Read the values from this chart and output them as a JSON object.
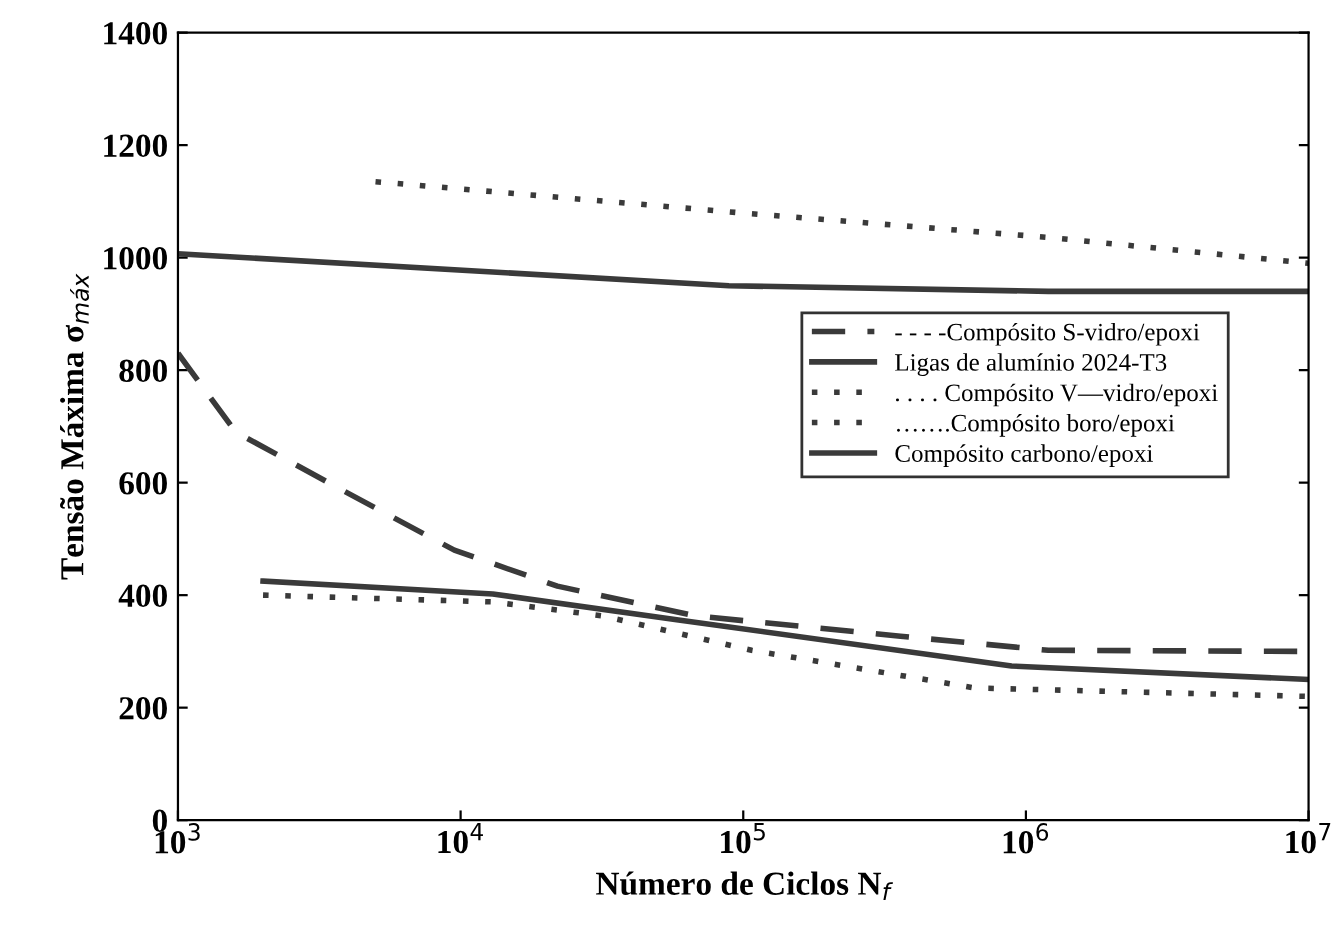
{
  "chart_data": {
    "type": "line",
    "xlabel": "Número de Ciclos N$_{f}$",
    "ylabel": "Tensão Máxima σ$_{máx}$",
    "log": "x",
    "xlim": [
      1000,
      10000000
    ],
    "ylim": [
      0,
      1400
    ],
    "xticks": [
      {
        "value": 1000,
        "label": "10$^{3}$"
      },
      {
        "value": 10000,
        "label": "10$^{4}$"
      },
      {
        "value": 100000,
        "label": "10$^{5}$"
      },
      {
        "value": 1000000,
        "label": "10$^{6}$"
      },
      {
        "value": 10000000,
        "label": "10$^{7}$"
      }
    ],
    "yticks": [
      0,
      200,
      400,
      600,
      800,
      1000,
      1200,
      1400
    ],
    "grid": false,
    "legend": "right",
    "series": [
      {
        "name": "- - - -Compósito S-vidro/epoxi",
        "color": "#3a3a3a",
        "line_style": "dashed",
        "x": [
          1000,
          1600,
          3900,
          9500,
          22000,
          68000,
          360000,
          1200000,
          10000000
        ],
        "values": [
          830,
          690,
          584,
          480,
          416,
          363,
          327,
          302,
          300
        ]
      },
      {
        "name": "Ligas de alumínio 2024-T3",
        "color": "#3a3a3a",
        "line_style": "solid",
        "x": [
          2000,
          13000,
          59000,
          890000,
          10000000
        ],
        "values": [
          425,
          402,
          356,
          274,
          250
        ]
      },
      {
        "name": ". . . . Compósito V—vidro/epoxi",
        "color": "#3a3a3a",
        "line_style": "dotted",
        "x": [
          2000,
          13000,
          32000,
          107000,
          660000,
          10000000
        ],
        "values": [
          400,
          388,
          363,
          302,
          235,
          220
        ]
      },
      {
        "name": "…….Compósito boro/epoxi",
        "color": "#3a3a3a",
        "line_style": "dotted",
        "x": [
          5000,
          107000,
          1200000,
          10000000
        ],
        "values": [
          1135,
          1078,
          1036,
          990
        ]
      },
      {
        "name": "Compósito carbono/epoxi",
        "color": "#3a3a3a",
        "line_style": "solid",
        "x": [
          1000,
          89000,
          1200000,
          10000000
        ],
        "values": [
          1007,
          950,
          940,
          940
        ]
      }
    ]
  }
}
